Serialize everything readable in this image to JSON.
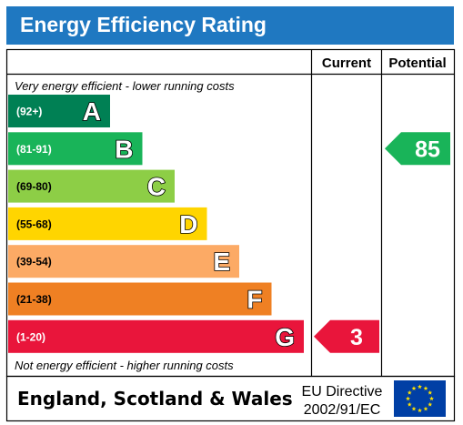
{
  "title": "Energy Efficiency Rating",
  "columns": {
    "current": "Current",
    "potential": "Potential"
  },
  "top_note": "Very energy efficient - lower running costs",
  "bottom_note": "Not energy efficient - higher running costs",
  "footer": {
    "region": "England, Scotland & Wales",
    "directive_line1": "EU Directive",
    "directive_line2": "2002/91/EC"
  },
  "chart_data": {
    "type": "bar",
    "title": "Energy Efficiency Rating",
    "categories": [
      "A",
      "B",
      "C",
      "D",
      "E",
      "F",
      "G"
    ],
    "ranges": [
      "(92+)",
      "(81-91)",
      "(69-80)",
      "(55-68)",
      "(39-54)",
      "(21-38)",
      "(1-20)"
    ],
    "colors": [
      "#008054",
      "#19b459",
      "#8dce46",
      "#ffd500",
      "#fcaa65",
      "#ef8023",
      "#e9153b"
    ],
    "current": {
      "value": 3,
      "band": "G",
      "color": "#e9153b"
    },
    "potential": {
      "value": 85,
      "band": "B",
      "color": "#19b459"
    }
  }
}
